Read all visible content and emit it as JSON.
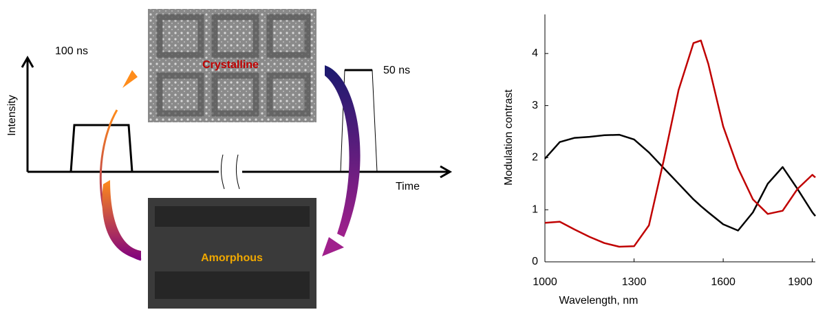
{
  "diagram": {
    "pulse_1": "100 ns",
    "pulse_2": "50 ns",
    "y_axis": "Intensity",
    "x_axis": "Time",
    "top_image": "Crystalline",
    "bottom_image": "Amorphous"
  },
  "chart_data": {
    "type": "line",
    "x_label": "Wavelength, nm",
    "y_label": "Modulation contrast",
    "x": [
      1000,
      1050,
      1100,
      1150,
      1200,
      1250,
      1300,
      1350,
      1400,
      1450,
      1500,
      1525,
      1550,
      1600,
      1650,
      1700,
      1750,
      1800,
      1850,
      1900,
      1910
    ],
    "series": [
      {
        "color": "#000000",
        "values": [
          1.98,
          2.3,
          2.38,
          2.4,
          2.43,
          2.44,
          2.35,
          2.1,
          1.8,
          1.5,
          1.2,
          1.07,
          0.95,
          0.72,
          0.6,
          0.95,
          1.5,
          1.82,
          1.4,
          0.95,
          0.88
        ]
      },
      {
        "color": "#c00000",
        "values": [
          0.75,
          0.77,
          0.62,
          0.48,
          0.36,
          0.29,
          0.3,
          0.7,
          1.95,
          3.3,
          4.2,
          4.25,
          3.8,
          2.6,
          1.8,
          1.2,
          0.92,
          0.98,
          1.4,
          1.67,
          1.62
        ]
      }
    ],
    "xlim": [
      1000,
      1910
    ],
    "xticks": [
      1000,
      1300,
      1600,
      1900
    ],
    "ylim": [
      0,
      4.75
    ],
    "yticks": [
      0,
      1,
      2,
      3,
      4
    ],
    "grid": false
  }
}
